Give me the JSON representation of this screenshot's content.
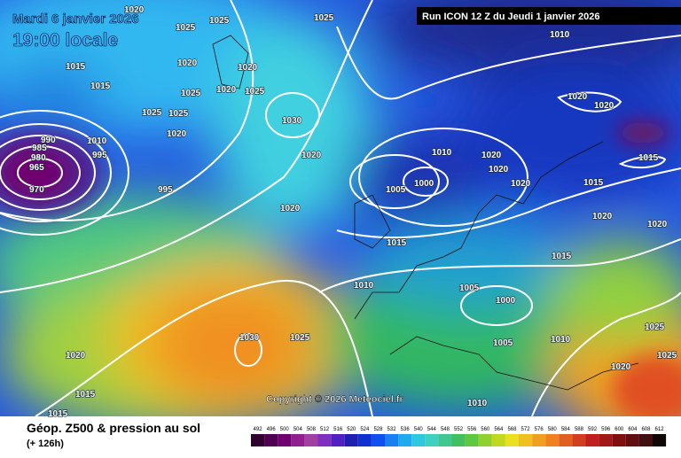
{
  "header": {
    "date": "Mardi 6 janvier 2026",
    "time": "19:00 locale",
    "run": "Run ICON 12 Z du Jeudi 1 janvier 2026"
  },
  "copyright": "Copyright © 2026 Meteociel.fr",
  "footer": {
    "title": "Géop. Z500 & pression au sol",
    "lead": "(+ 126h)"
  },
  "scale": [
    "492",
    "496",
    "500",
    "504",
    "508",
    "512",
    "516",
    "520",
    "524",
    "528",
    "532",
    "536",
    "540",
    "544",
    "548",
    "552",
    "556",
    "560",
    "564",
    "568",
    "572",
    "576",
    "580",
    "584",
    "588",
    "592",
    "596",
    "600",
    "604",
    "608",
    "612"
  ],
  "isobar_labels": [
    "1020",
    "1025",
    "1025",
    "1025",
    "1010",
    "1020",
    "1020",
    "1015",
    "1015",
    "1025",
    "1020",
    "1025",
    "1025",
    "1025",
    "1030",
    "990",
    "985",
    "980",
    "965",
    "970",
    "1010",
    "995",
    "1020",
    "995",
    "1020",
    "1010",
    "1020",
    "1020",
    "1005",
    "1000",
    "1020",
    "1015",
    "1015",
    "1020",
    "1020",
    "1020",
    "1020",
    "1020",
    "1015",
    "1015",
    "1010",
    "1005",
    "1000",
    "1005",
    "1010",
    "1030",
    "1025",
    "1020",
    "1015",
    "1015",
    "1020",
    "1025",
    "1025",
    "1010"
  ]
}
